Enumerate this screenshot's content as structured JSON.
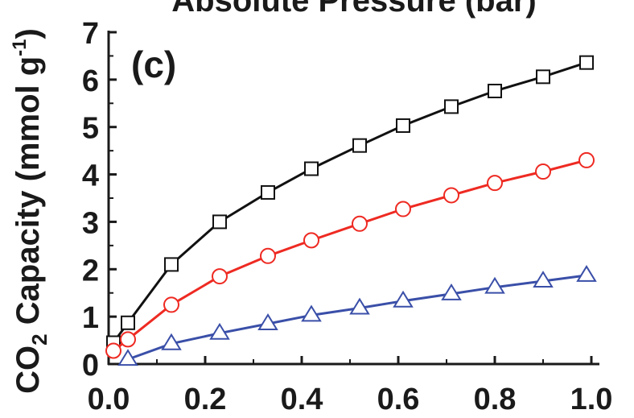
{
  "chart_data": {
    "type": "line",
    "title": "Absolute Pressure (bar)",
    "panel_label": "(c)",
    "ylabel_main": "Capacity (mmol g",
    "ylabel_prefix": "CO",
    "ylabel_sub": "2",
    "ylabel_sup": "-1",
    "ylabel_close": ")",
    "xlim": [
      0.0,
      1.0
    ],
    "ylim": [
      0,
      7
    ],
    "xticks": [
      "0.0",
      "0.2",
      "0.4",
      "0.6",
      "0.8",
      "1.0"
    ],
    "yticks": [
      "0",
      "1",
      "2",
      "3",
      "4",
      "5",
      "6",
      "7"
    ],
    "grid": false,
    "series": [
      {
        "marker": "square",
        "color": "#111111",
        "x": [
          0.01,
          0.04,
          0.13,
          0.23,
          0.33,
          0.42,
          0.52,
          0.61,
          0.71,
          0.8,
          0.9,
          0.99
        ],
        "values": [
          0.45,
          0.87,
          2.1,
          3.0,
          3.62,
          4.12,
          4.61,
          5.03,
          5.43,
          5.76,
          6.06,
          6.36
        ]
      },
      {
        "marker": "circle",
        "color": "#ee2a22",
        "x": [
          0.01,
          0.04,
          0.13,
          0.23,
          0.33,
          0.42,
          0.52,
          0.61,
          0.71,
          0.8,
          0.9,
          0.99
        ],
        "values": [
          0.28,
          0.52,
          1.25,
          1.85,
          2.28,
          2.61,
          2.96,
          3.27,
          3.56,
          3.82,
          4.06,
          4.3
        ]
      },
      {
        "marker": "triangle",
        "color": "#3a4fa8",
        "x": [
          0.04,
          0.13,
          0.23,
          0.33,
          0.42,
          0.52,
          0.61,
          0.71,
          0.8,
          0.9,
          0.99
        ],
        "values": [
          0.1,
          0.43,
          0.65,
          0.85,
          1.03,
          1.18,
          1.33,
          1.48,
          1.62,
          1.75,
          1.87
        ]
      }
    ]
  }
}
